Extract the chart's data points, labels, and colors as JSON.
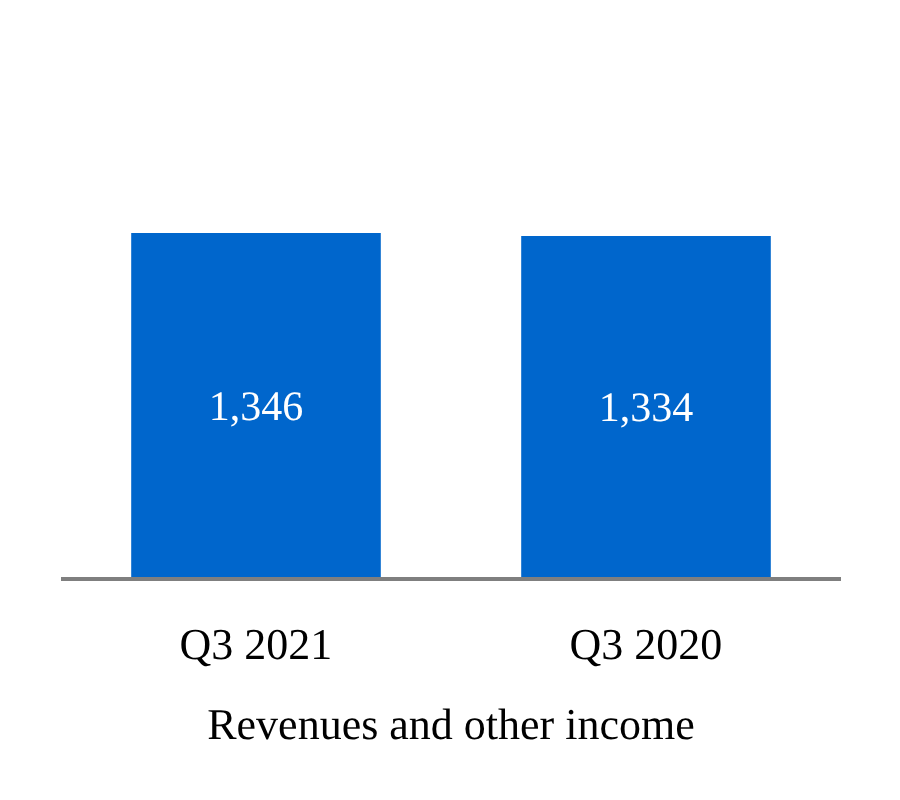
{
  "chart_data": {
    "type": "bar",
    "xlabel": "Revenues and other income",
    "categories": [
      "Q3 2021",
      "Q3 2020"
    ],
    "values": [
      1346,
      1334
    ],
    "value_labels": [
      "1,346",
      "1,334"
    ],
    "color": "#0066cc",
    "tick_labels": "x"
  }
}
